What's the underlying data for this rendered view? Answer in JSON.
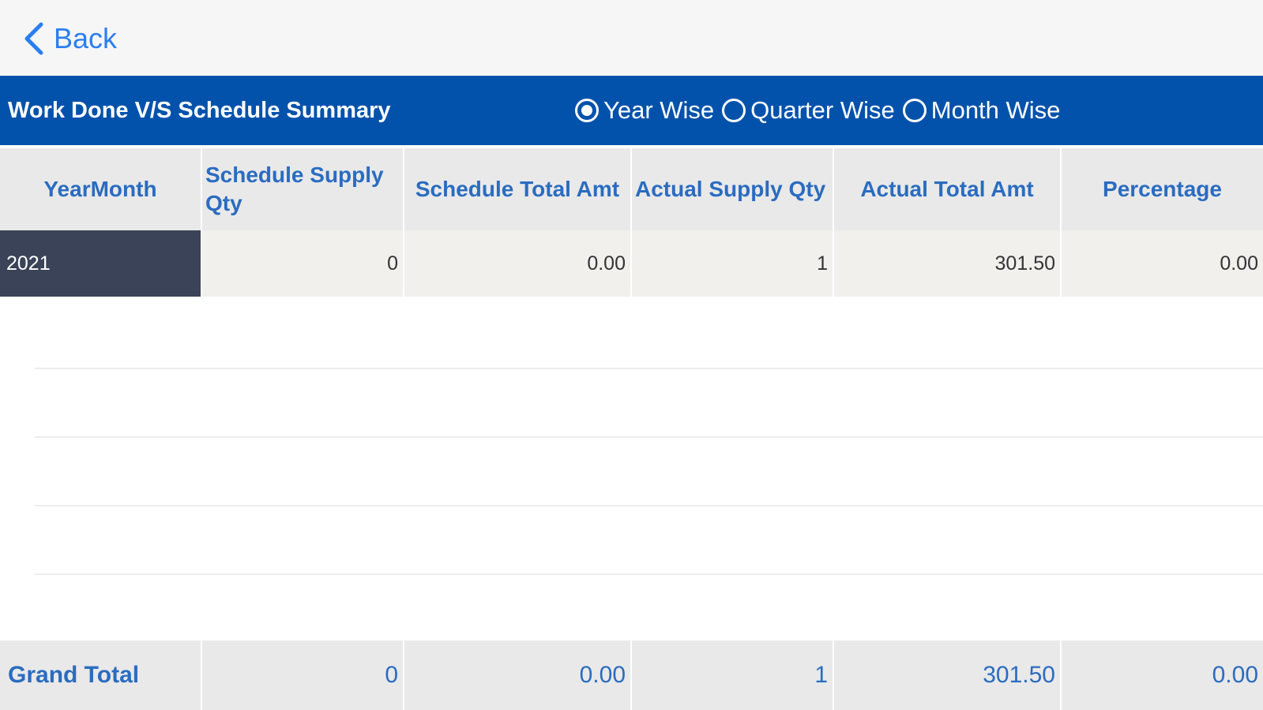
{
  "nav": {
    "back_label": "Back"
  },
  "titlebar": {
    "title": "Work Done V/S Schedule Summary",
    "options": [
      {
        "label": "Year Wise",
        "checked": true
      },
      {
        "label": "Quarter Wise",
        "checked": false
      },
      {
        "label": "Month Wise",
        "checked": false
      }
    ]
  },
  "table": {
    "headers": [
      "YearMonth",
      "Schedule Supply Qty",
      "Schedule Total Amt",
      "Actual Supply Qty",
      "Actual Total Amt",
      "Percentage"
    ],
    "rows": [
      [
        "2021",
        "0",
        "0.00",
        "1",
        "301.50",
        "0.00"
      ]
    ],
    "total": [
      "Grand Total",
      "0",
      "0.00",
      "1",
      "301.50",
      "0.00"
    ]
  },
  "colors": {
    "accent": "#0252ac",
    "link": "#2a7ff0",
    "header_text": "#2a6cc0",
    "selected_cell": "#3a4357"
  }
}
